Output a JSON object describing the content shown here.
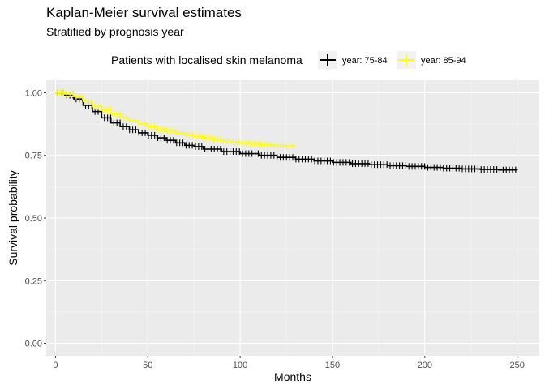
{
  "chart_data": {
    "type": "line",
    "title": "Kaplan-Meier survival estimates",
    "subtitle": "Stratified by prognosis year",
    "xlabel": "Months",
    "ylabel": "Survival probability",
    "xlim": [
      -5,
      262
    ],
    "ylim": [
      -0.05,
      1.05
    ],
    "xticks": [
      0,
      50,
      100,
      150,
      200,
      250
    ],
    "yticks": [
      0.0,
      0.25,
      0.5,
      0.75,
      1.0
    ],
    "ytick_labels": [
      "0.00",
      "0.25",
      "0.50",
      "0.75",
      "1.00"
    ],
    "grid": true,
    "legend": {
      "title": "Patients with localised skin melanoma",
      "position": "top",
      "entries": [
        "year: 75-84",
        "year: 85-94"
      ]
    },
    "series": [
      {
        "name": "year: 75-84",
        "color": "#000000",
        "x": [
          0,
          5,
          10,
          15,
          20,
          25,
          30,
          35,
          40,
          45,
          50,
          55,
          60,
          65,
          70,
          75,
          80,
          90,
          100,
          110,
          120,
          130,
          140,
          150,
          160,
          170,
          180,
          190,
          200,
          210,
          220,
          230,
          240,
          250
        ],
        "y": [
          1.0,
          0.99,
          0.975,
          0.95,
          0.925,
          0.9,
          0.88,
          0.865,
          0.852,
          0.84,
          0.83,
          0.82,
          0.81,
          0.8,
          0.79,
          0.785,
          0.775,
          0.765,
          0.757,
          0.75,
          0.742,
          0.735,
          0.728,
          0.722,
          0.717,
          0.713,
          0.709,
          0.706,
          0.702,
          0.699,
          0.696,
          0.694,
          0.692,
          0.691
        ]
      },
      {
        "name": "year: 85-94",
        "color": "#ffff00",
        "x": [
          0,
          5,
          10,
          15,
          20,
          25,
          30,
          35,
          40,
          45,
          50,
          55,
          60,
          65,
          70,
          75,
          80,
          85,
          90,
          95,
          100,
          105,
          110,
          115,
          120,
          125,
          130
        ],
        "y": [
          1.0,
          0.995,
          0.985,
          0.965,
          0.945,
          0.93,
          0.915,
          0.9,
          0.888,
          0.875,
          0.865,
          0.855,
          0.848,
          0.84,
          0.833,
          0.826,
          0.82,
          0.814,
          0.808,
          0.803,
          0.799,
          0.796,
          0.793,
          0.791,
          0.789,
          0.788,
          0.788
        ]
      }
    ]
  }
}
